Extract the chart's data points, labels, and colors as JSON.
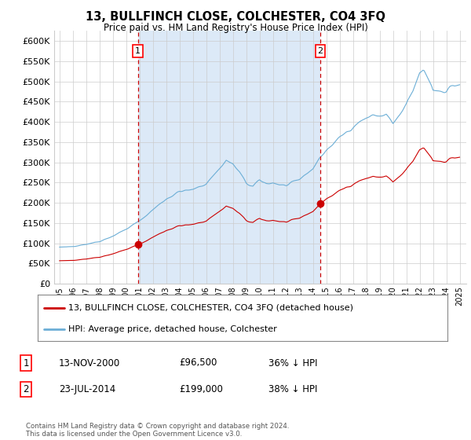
{
  "title": "13, BULLFINCH CLOSE, COLCHESTER, CO4 3FQ",
  "subtitle": "Price paid vs. HM Land Registry's House Price Index (HPI)",
  "plot_bg_color": "#ffffff",
  "fill_between_color": "#dce9f7",
  "y_ticks": [
    0,
    50000,
    100000,
    150000,
    200000,
    250000,
    300000,
    350000,
    400000,
    450000,
    500000,
    550000,
    600000
  ],
  "y_tick_labels": [
    "£0",
    "£50K",
    "£100K",
    "£150K",
    "£200K",
    "£250K",
    "£300K",
    "£350K",
    "£400K",
    "£450K",
    "£500K",
    "£550K",
    "£600K"
  ],
  "ylim": [
    0,
    625000
  ],
  "purchase1_date": 2000.87,
  "purchase1_price": 96500,
  "purchase2_date": 2014.56,
  "purchase2_price": 199000,
  "legend_line1": "13, BULLFINCH CLOSE, COLCHESTER, CO4 3FQ (detached house)",
  "legend_line2": "HPI: Average price, detached house, Colchester",
  "table_row1": [
    "1",
    "13-NOV-2000",
    "£96,500",
    "36% ↓ HPI"
  ],
  "table_row2": [
    "2",
    "23-JUL-2014",
    "£199,000",
    "38% ↓ HPI"
  ],
  "footer": "Contains HM Land Registry data © Crown copyright and database right 2024.\nThis data is licensed under the Open Government Licence v3.0.",
  "hpi_color": "#6baed6",
  "price_color": "#cc0000",
  "dashed_color": "#cc0000",
  "grid_color": "#cccccc"
}
